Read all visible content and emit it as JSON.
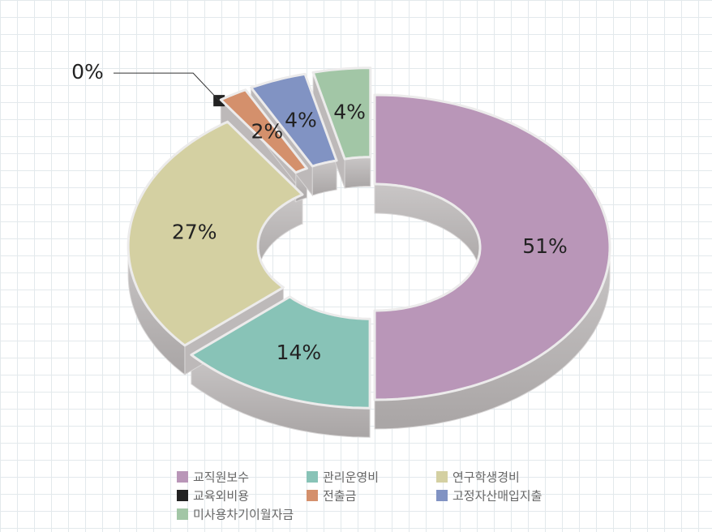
{
  "chart_data": {
    "type": "pie",
    "donut": true,
    "categories": [
      "교직원보수",
      "관리운영비",
      "연구학생경비",
      "교육외비용",
      "전출금",
      "고정자산매입지출",
      "미사용차기이월자금"
    ],
    "values": [
      51,
      14,
      27,
      0,
      2,
      4,
      4
    ],
    "value_labels": [
      "51%",
      "14%",
      "27%",
      "0%",
      "2%",
      "4%",
      "4%"
    ],
    "colors": [
      "#b996b8",
      "#88c3b7",
      "#d4d0a2",
      "#222222",
      "#d4906c",
      "#8193c3",
      "#a2c6a6"
    ]
  }
}
